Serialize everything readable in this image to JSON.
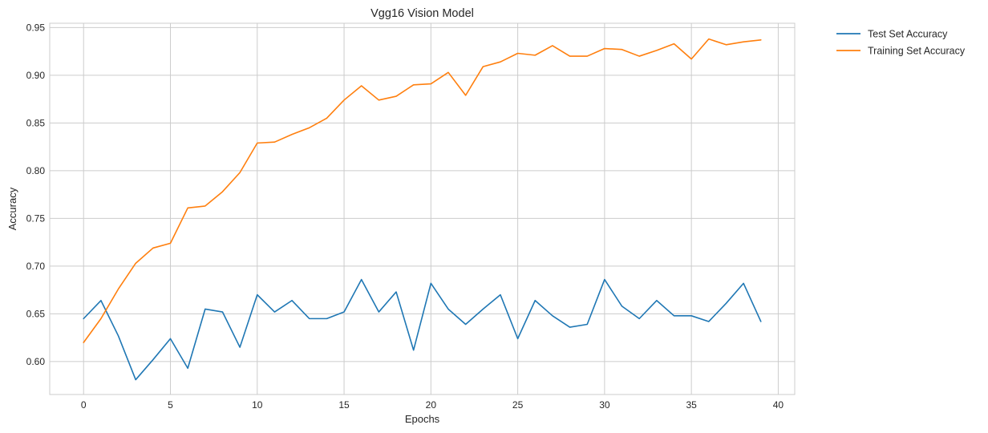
{
  "chart_data": {
    "type": "line",
    "title": "Vgg16 Vision Model",
    "xlabel": "Epochs",
    "ylabel": "Accuracy",
    "xlim": [
      -1.95,
      40.95
    ],
    "ylim": [
      0.5655,
      0.9545
    ],
    "xticks": [
      0,
      5,
      10,
      15,
      20,
      25,
      30,
      35,
      40
    ],
    "yticks": [
      0.6,
      0.65,
      0.7,
      0.75,
      0.8,
      0.85,
      0.9,
      0.95
    ],
    "ytick_labels": [
      "0.60",
      "0.65",
      "0.70",
      "0.75",
      "0.80",
      "0.85",
      "0.90",
      "0.95"
    ],
    "grid": true,
    "legend_position": "outside-top-right",
    "x": [
      0,
      1,
      2,
      3,
      4,
      5,
      6,
      7,
      8,
      9,
      10,
      11,
      12,
      13,
      14,
      15,
      16,
      17,
      18,
      19,
      20,
      21,
      22,
      23,
      24,
      25,
      26,
      27,
      28,
      29,
      30,
      31,
      32,
      33,
      34,
      35,
      36,
      37,
      38,
      39
    ],
    "series": [
      {
        "name": "Test Set Accuracy",
        "color": "#1f77b4",
        "values": [
          0.645,
          0.664,
          0.627,
          0.581,
          0.602,
          0.624,
          0.593,
          0.655,
          0.652,
          0.615,
          0.67,
          0.652,
          0.664,
          0.645,
          0.645,
          0.652,
          0.686,
          0.652,
          0.673,
          0.612,
          0.682,
          0.655,
          0.639,
          0.655,
          0.67,
          0.624,
          0.664,
          0.648,
          0.636,
          0.639,
          0.686,
          0.658,
          0.645,
          0.664,
          0.648,
          0.648,
          0.642,
          0.661,
          0.682,
          0.642
        ]
      },
      {
        "name": "Training Set Accuracy",
        "color": "#ff7f0e",
        "values": [
          0.62,
          0.645,
          0.676,
          0.703,
          0.719,
          0.724,
          0.761,
          0.763,
          0.778,
          0.798,
          0.829,
          0.83,
          0.838,
          0.845,
          0.855,
          0.874,
          0.889,
          0.874,
          0.878,
          0.89,
          0.891,
          0.903,
          0.879,
          0.909,
          0.914,
          0.923,
          0.921,
          0.931,
          0.92,
          0.92,
          0.928,
          0.927,
          0.92,
          0.926,
          0.933,
          0.917,
          0.938,
          0.932,
          0.935,
          0.937
        ]
      }
    ]
  }
}
